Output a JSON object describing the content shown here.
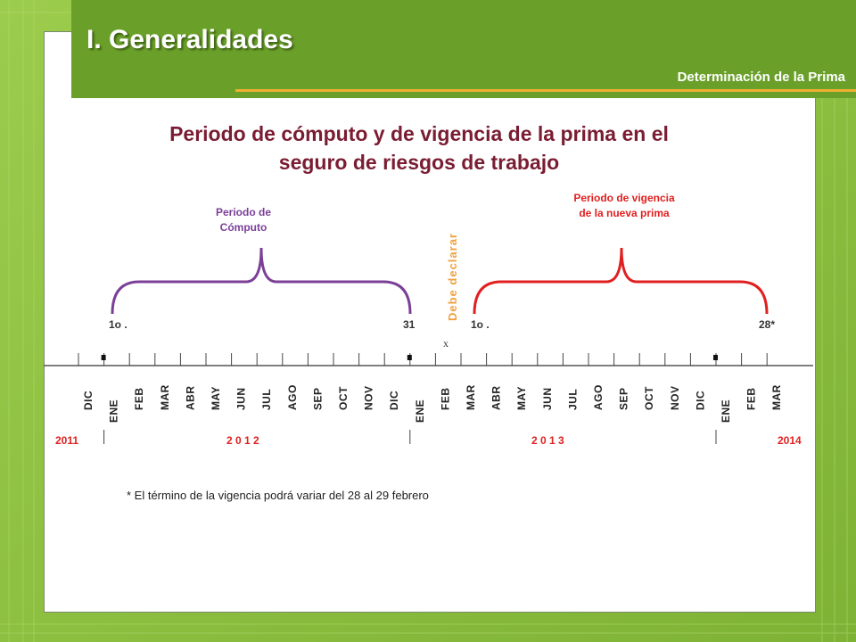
{
  "header": {
    "title": "I. Generalidades",
    "subtitle": "Determinación de la Prima"
  },
  "slide": {
    "title_line1": "Periodo de cómputo y de vigencia de la prima en el",
    "title_line2": "seguro de riesgos de trabajo"
  },
  "labels": {
    "computo_line1": "Periodo de",
    "computo_line2": "Cómputo",
    "vigencia_line1": "Periodo de vigencia",
    "vigencia_line2": "de la nueva prima",
    "declarar": "Debe declarar"
  },
  "markers": {
    "computo_start": "1o .",
    "computo_end": "31",
    "vigencia_start": "1o .",
    "vigencia_end": "28*",
    "x_mark": "x"
  },
  "timeline": {
    "months": [
      "DIC",
      "ENE",
      "FEB",
      "MAR",
      "ABR",
      "MAY",
      "JUN",
      "JUL",
      "AGO",
      "SEP",
      "OCT",
      "NOV",
      "DIC",
      "ENE",
      "FEB",
      "MAR",
      "ABR",
      "MAY",
      "JUN",
      "JUL",
      "AGO",
      "SEP",
      "OCT",
      "NOV",
      "DIC",
      "ENE",
      "FEB",
      "MAR"
    ],
    "years": [
      "2011",
      "2 0 1 2",
      "2 0 1 3",
      "2014"
    ]
  },
  "footnote": "* El término de la vigencia podrá variar del 28 al 29 febrero",
  "colors": {
    "background": "#8dbf3f",
    "header": "#6aa02a",
    "accent_line": "#f0b030",
    "title": "#7a1d32",
    "computo": "#7b3f98",
    "vigencia": "#e02020",
    "declarar": "#f0a040"
  }
}
